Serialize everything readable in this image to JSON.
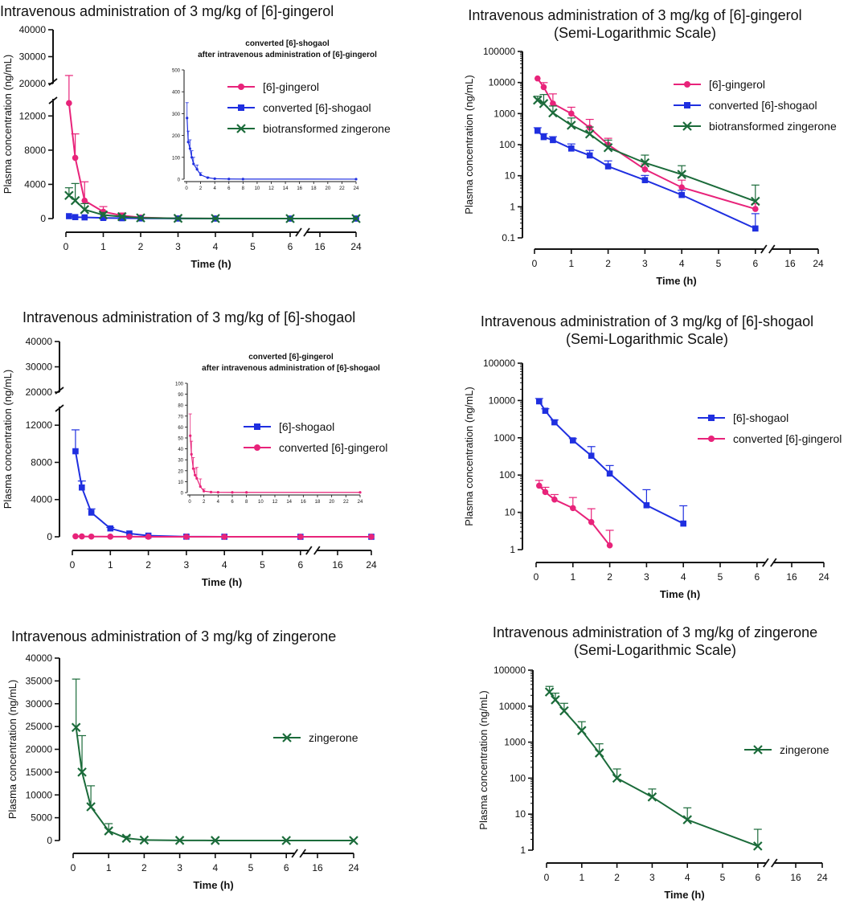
{
  "chart_data": [
    {
      "id": "p1",
      "type": "line",
      "yscale": "linear",
      "title": "Intravenous administration of 3 mg/kg of [6]-gingerol",
      "xlabel": "Time (h)",
      "ylabel": "Plasma concentration (ng/mL)",
      "xticks": [
        "0",
        "1",
        "2",
        "3",
        "4",
        "5",
        "6",
        "16",
        "24"
      ],
      "yticks_lower": [
        "0",
        "4000",
        "8000",
        "12000"
      ],
      "yticks_upper": [
        "20000",
        "30000",
        "40000"
      ],
      "legend_position": "top-right",
      "series": [
        {
          "name": "[6]-gingerol",
          "color": "#e8237a",
          "marker": "circle",
          "x": [
            0.083,
            0.25,
            0.5,
            1,
            1.5,
            2,
            3,
            4,
            6,
            24
          ],
          "y": [
            13500,
            7100,
            2100,
            800,
            350,
            130,
            15,
            4,
            0.8,
            0
          ],
          "err": [
            9500,
            2800,
            2200,
            600,
            300,
            50,
            8,
            3,
            0.4,
            0
          ]
        },
        {
          "name": "converted [6]-shogaol",
          "color": "#1f2fe0",
          "marker": "square",
          "x": [
            0.083,
            0.25,
            0.5,
            1,
            1.5,
            2,
            3,
            4,
            6,
            24
          ],
          "y": [
            280,
            170,
            140,
            75,
            45,
            20,
            7,
            2.4,
            0.2,
            0
          ],
          "err": [
            70,
            50,
            40,
            30,
            20,
            10,
            3,
            1,
            0.4,
            0
          ]
        },
        {
          "name": "biotransformed zingerone",
          "color": "#1b6b3a",
          "marker": "x",
          "x": [
            0.083,
            0.25,
            0.5,
            1,
            1.5,
            2,
            3,
            4,
            6,
            24
          ],
          "y": [
            2700,
            2100,
            1050,
            420,
            220,
            80,
            26,
            11,
            1.5,
            0
          ],
          "err": [
            900,
            2000,
            700,
            300,
            150,
            60,
            20,
            10,
            3.5,
            0
          ]
        }
      ],
      "inset": {
        "title_lines": [
          "converted [6]-shogaol",
          "after intravenous administration of [6]-gingerol"
        ],
        "yticks": [
          "0",
          "100",
          "200",
          "300",
          "400",
          "500"
        ],
        "xticks": [
          "0",
          "2",
          "4",
          "6",
          "8",
          "10",
          "12",
          "14",
          "16",
          "18",
          "20",
          "22",
          "24"
        ],
        "series_color": "#1f2fe0",
        "x": [
          0.083,
          0.25,
          0.5,
          0.75,
          1,
          1.5,
          2,
          3,
          4,
          6,
          8,
          24
        ],
        "y": [
          280,
          170,
          140,
          100,
          70,
          45,
          20,
          7,
          2.4,
          1,
          0.5,
          0.2
        ],
        "err": [
          70,
          50,
          40,
          30,
          30,
          20,
          10,
          3,
          1,
          0.5,
          0,
          0
        ]
      }
    },
    {
      "id": "p2",
      "type": "line",
      "yscale": "log",
      "title_lines": [
        "Intravenous administration of 3 mg/kg of [6]-gingerol",
        "(Semi-Logarithmic Scale)"
      ],
      "xlabel": "Time (h)",
      "ylabel": "Plasma concentration (ng/mL)",
      "xticks": [
        "0",
        "1",
        "2",
        "3",
        "4",
        "5",
        "6",
        "16",
        "24"
      ],
      "yticks": [
        "0.1",
        "1",
        "10",
        "100",
        "1000",
        "10000",
        "100000"
      ],
      "legend_position": "top-right",
      "series": [
        {
          "name": "[6]-gingerol",
          "color": "#e8237a",
          "marker": "circle",
          "x": [
            0.083,
            0.25,
            0.5,
            1,
            1.5,
            2,
            3,
            4,
            6
          ],
          "y": [
            13500,
            7100,
            2100,
            1000,
            350,
            100,
            16,
            4.2,
            0.85
          ],
          "err": [
            0,
            2800,
            2200,
            600,
            300,
            60,
            8,
            3,
            0.4
          ]
        },
        {
          "name": "converted [6]-shogaol",
          "color": "#1f2fe0",
          "marker": "square",
          "x": [
            0.083,
            0.25,
            0.5,
            1,
            1.5,
            2,
            3,
            4,
            6
          ],
          "y": [
            280,
            175,
            140,
            75,
            45,
            20,
            7.2,
            2.4,
            0.2
          ],
          "err": [
            70,
            50,
            40,
            30,
            20,
            10,
            3,
            1,
            0.4
          ]
        },
        {
          "name": "biotransformed zingerone",
          "color": "#1b6b3a",
          "marker": "x",
          "x": [
            0.083,
            0.25,
            0.5,
            1,
            1.5,
            2,
            3,
            4,
            6
          ],
          "y": [
            2700,
            2100,
            1050,
            420,
            220,
            80,
            26,
            11,
            1.5
          ],
          "err": [
            900,
            2000,
            700,
            300,
            150,
            60,
            20,
            10,
            3.5
          ]
        }
      ]
    },
    {
      "id": "p3",
      "type": "line",
      "yscale": "linear",
      "title": "Intravenous administration of 3 mg/kg of [6]-shogaol",
      "xlabel": "Time (h)",
      "ylabel": "Plasma concentration (ng/mL)",
      "xticks": [
        "0",
        "1",
        "2",
        "3",
        "4",
        "5",
        "6",
        "16",
        "24"
      ],
      "yticks_lower": [
        "0",
        "4000",
        "8000",
        "12000"
      ],
      "yticks_upper": [
        "20000",
        "30000",
        "40000"
      ],
      "legend_position": "right",
      "series": [
        {
          "name": "[6]-shogaol",
          "color": "#1f2fe0",
          "marker": "square",
          "x": [
            0.083,
            0.25,
            0.5,
            1,
            1.5,
            2,
            3,
            4,
            6,
            24
          ],
          "y": [
            9200,
            5300,
            2600,
            900,
            350,
            120,
            15,
            5,
            0,
            0
          ],
          "err": [
            2300,
            700,
            400,
            100,
            80,
            60,
            25,
            10,
            0,
            0
          ]
        },
        {
          "name": "converted [6]-gingerol",
          "color": "#e8237a",
          "marker": "circle",
          "x": [
            0.083,
            0.25,
            0.5,
            1,
            1.5,
            2,
            3,
            4,
            6,
            24
          ],
          "y": [
            52,
            35,
            22,
            13,
            5.5,
            1.3,
            0.5,
            0.3,
            0.2,
            0.2
          ],
          "err": [
            20,
            12,
            8,
            10,
            7,
            2,
            0,
            0,
            0,
            0
          ]
        }
      ],
      "inset": {
        "title_lines": [
          "converted [6]-gingerol",
          "after intravenous administration of [6]-shogaol"
        ],
        "yticks": [
          "0",
          "10",
          "20",
          "30",
          "40",
          "50",
          "60",
          "70",
          "80",
          "90",
          "100"
        ],
        "xticks": [
          "0",
          "2",
          "4",
          "6",
          "8",
          "10",
          "12",
          "14",
          "16",
          "18",
          "20",
          "22",
          "24"
        ],
        "series_color": "#e8237a",
        "x": [
          0.083,
          0.25,
          0.5,
          0.75,
          1,
          1.5,
          2,
          3,
          4,
          6,
          8,
          24
        ],
        "y": [
          52,
          35,
          22,
          16,
          13,
          5.5,
          1.3,
          0.5,
          0.3,
          0.2,
          0.2,
          0.2
        ],
        "err": [
          20,
          12,
          10,
          6,
          10,
          7,
          2,
          0,
          0,
          0,
          0,
          0
        ]
      }
    },
    {
      "id": "p4",
      "type": "line",
      "yscale": "log",
      "title_lines": [
        "Intravenous administration of 3 mg/kg of [6]-shogaol",
        "(Semi-Logarithmic Scale)"
      ],
      "xlabel": "Time (h)",
      "ylabel": "Plasma concentration (ng/mL)",
      "xticks": [
        "0",
        "1",
        "2",
        "3",
        "4",
        "5",
        "6",
        "16",
        "24"
      ],
      "yticks": [
        "1",
        "10",
        "100",
        "1000",
        "10000",
        "100000"
      ],
      "legend_position": "right",
      "series": [
        {
          "name": "[6]-shogaol",
          "color": "#1f2fe0",
          "marker": "square",
          "x": [
            0.083,
            0.25,
            0.5,
            1,
            1.5,
            2,
            3,
            4
          ],
          "y": [
            9500,
            5300,
            2600,
            850,
            330,
            110,
            15.5,
            5
          ],
          "err": [
            1800,
            700,
            400,
            100,
            250,
            70,
            25,
            10
          ]
        },
        {
          "name": "converted [6]-gingerol",
          "color": "#e8237a",
          "marker": "circle",
          "x": [
            0.083,
            0.25,
            0.5,
            1,
            1.5,
            2
          ],
          "y": [
            52,
            35,
            22,
            13,
            5.5,
            1.3
          ],
          "err": [
            20,
            12,
            8,
            12,
            7,
            2
          ]
        }
      ]
    },
    {
      "id": "p5",
      "type": "line",
      "yscale": "linear",
      "title": "Intravenous administration of 3 mg/kg of zingerone",
      "xlabel": "Time (h)",
      "ylabel": "Plasma concentration (ng/mL)",
      "xticks": [
        "0",
        "1",
        "2",
        "3",
        "4",
        "5",
        "6",
        "16",
        "24"
      ],
      "yticks": [
        "0",
        "5000",
        "10000",
        "15000",
        "20000",
        "25000",
        "30000",
        "35000",
        "40000"
      ],
      "legend_position": "right",
      "series": [
        {
          "name": "zingerone",
          "color": "#1b6b3a",
          "marker": "x",
          "x": [
            0.083,
            0.25,
            0.5,
            1,
            1.5,
            2,
            3,
            4,
            6,
            24
          ],
          "y": [
            24800,
            15000,
            7400,
            2100,
            500,
            100,
            30,
            7,
            1.3,
            0
          ],
          "err": [
            10600,
            8000,
            4600,
            1600,
            400,
            80,
            20,
            8,
            2.5,
            0
          ]
        }
      ]
    },
    {
      "id": "p6",
      "type": "line",
      "yscale": "log",
      "title_lines": [
        "Intravenous administration of 3 mg/kg of zingerone",
        "(Semi-Logarithmic Scale)"
      ],
      "xlabel": "Time (h)",
      "ylabel": "Plasma concentration (ng/mL)",
      "xticks": [
        "0",
        "1",
        "2",
        "3",
        "4",
        "5",
        "6",
        "16",
        "24"
      ],
      "yticks": [
        "1",
        "10",
        "100",
        "1000",
        "10000",
        "100000"
      ],
      "legend_position": "right",
      "series": [
        {
          "name": "zingerone",
          "color": "#1b6b3a",
          "marker": "x",
          "x": [
            0.083,
            0.25,
            0.5,
            1,
            1.5,
            2,
            3,
            4,
            6
          ],
          "y": [
            24800,
            15000,
            7400,
            2100,
            500,
            100,
            30,
            7,
            1.3
          ],
          "err": [
            10600,
            8000,
            4600,
            1600,
            400,
            80,
            20,
            8,
            2.5
          ]
        }
      ]
    }
  ]
}
